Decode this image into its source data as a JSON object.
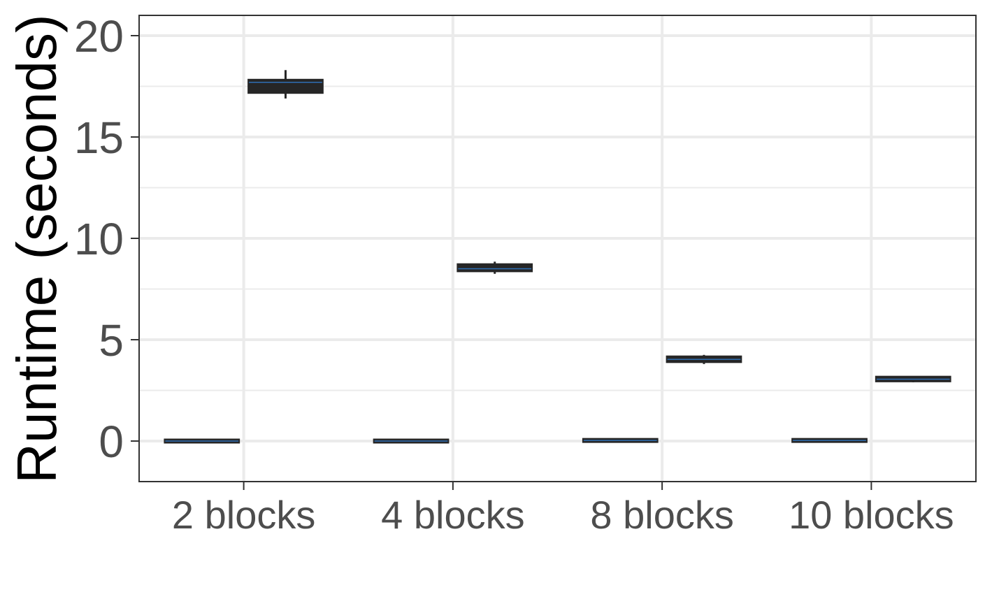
{
  "chart_data": {
    "type": "boxplot",
    "title": "",
    "xlabel": "",
    "ylabel": "Runtime (seconds)",
    "ylim": [
      -2,
      21
    ],
    "yticks": [
      0,
      5,
      10,
      15,
      20
    ],
    "grid": true,
    "legend": "none",
    "categories": [
      "2 blocks",
      "4 blocks",
      "8 blocks",
      "10 blocks"
    ],
    "series": [
      {
        "boxes": [
          {
            "min": 0.0,
            "q1": 0.0,
            "median": 0.0,
            "q3": 0.0,
            "max": 0.0
          },
          {
            "min": 0.0,
            "q1": 0.0,
            "median": 0.0,
            "q3": 0.0,
            "max": 0.0
          },
          {
            "min": 0.02,
            "q1": 0.02,
            "median": 0.03,
            "q3": 0.04,
            "max": 0.05
          },
          {
            "min": 0.02,
            "q1": 0.02,
            "median": 0.03,
            "q3": 0.04,
            "max": 0.05
          }
        ]
      },
      {
        "boxes": [
          {
            "min": 16.9,
            "q1": 17.2,
            "median": 17.7,
            "q3": 17.8,
            "max": 18.3
          },
          {
            "min": 8.25,
            "q1": 8.4,
            "median": 8.5,
            "q3": 8.7,
            "max": 8.85
          },
          {
            "min": 3.8,
            "q1": 3.92,
            "median": 4.03,
            "q3": 4.15,
            "max": 4.25
          },
          {
            "min": 2.9,
            "q1": 2.97,
            "median": 3.05,
            "q3": 3.15,
            "max": 3.2
          }
        ]
      }
    ],
    "colors": {
      "box_fill": "#262626",
      "box_line": "#262626",
      "median_line": "#2f6fb5",
      "panel_border": "#333333",
      "grid": "#ebebeb",
      "tick_text": "#4d4d4d"
    }
  }
}
